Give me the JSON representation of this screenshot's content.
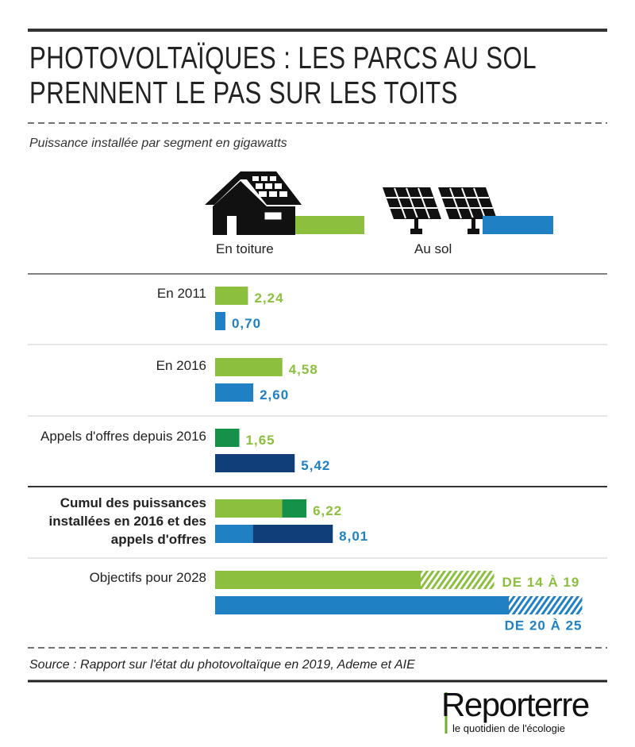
{
  "chart_data": {
    "type": "bar",
    "title": "PHOTOVOLTAÏQUES : LES PARCS AU SOL PRENNENT LE PAS SUR LES TOITS",
    "subtitle": "Puissance installée par segment en gigawatts",
    "source": "Source : Rapport sur l'état du photovoltaïque en 2019, Ademe et AIE",
    "brand": "Reporterre",
    "tagline": "le quotidien de l'écologie",
    "categories": [
      "En 2011",
      "En 2016",
      "Appels d'offres depuis 2016",
      "Cumul des puissances installées en 2016 et des appels d'offres",
      "Objectifs pour 2028"
    ],
    "series": [
      {
        "name": "En toiture",
        "color": "#8cbf3e",
        "colors": [
          "#8cbf3e",
          "#8cbf3e",
          "#16914a",
          "#8cbf3e",
          "#8cbf3e"
        ],
        "values": [
          2.24,
          4.58,
          1.65,
          6.22,
          null
        ],
        "value_labels": [
          "2,24",
          "4,58",
          "1,65",
          "6,22",
          null
        ],
        "target": {
          "range": [
            14,
            19
          ],
          "label": "DE 14 À 19"
        }
      },
      {
        "name": "Au sol",
        "color": "#1f80c3",
        "colors": [
          "#1f80c3",
          "#1f80c3",
          "#0f3e78",
          "#1f80c3",
          "#1f80c3"
        ],
        "values": [
          0.7,
          2.6,
          5.42,
          8.01,
          null
        ],
        "value_labels": [
          "0,70",
          "2,60",
          "5,42",
          "8,01",
          null
        ],
        "target": {
          "range": [
            20,
            25
          ],
          "label": "DE 20 À 25"
        }
      }
    ]
  }
}
